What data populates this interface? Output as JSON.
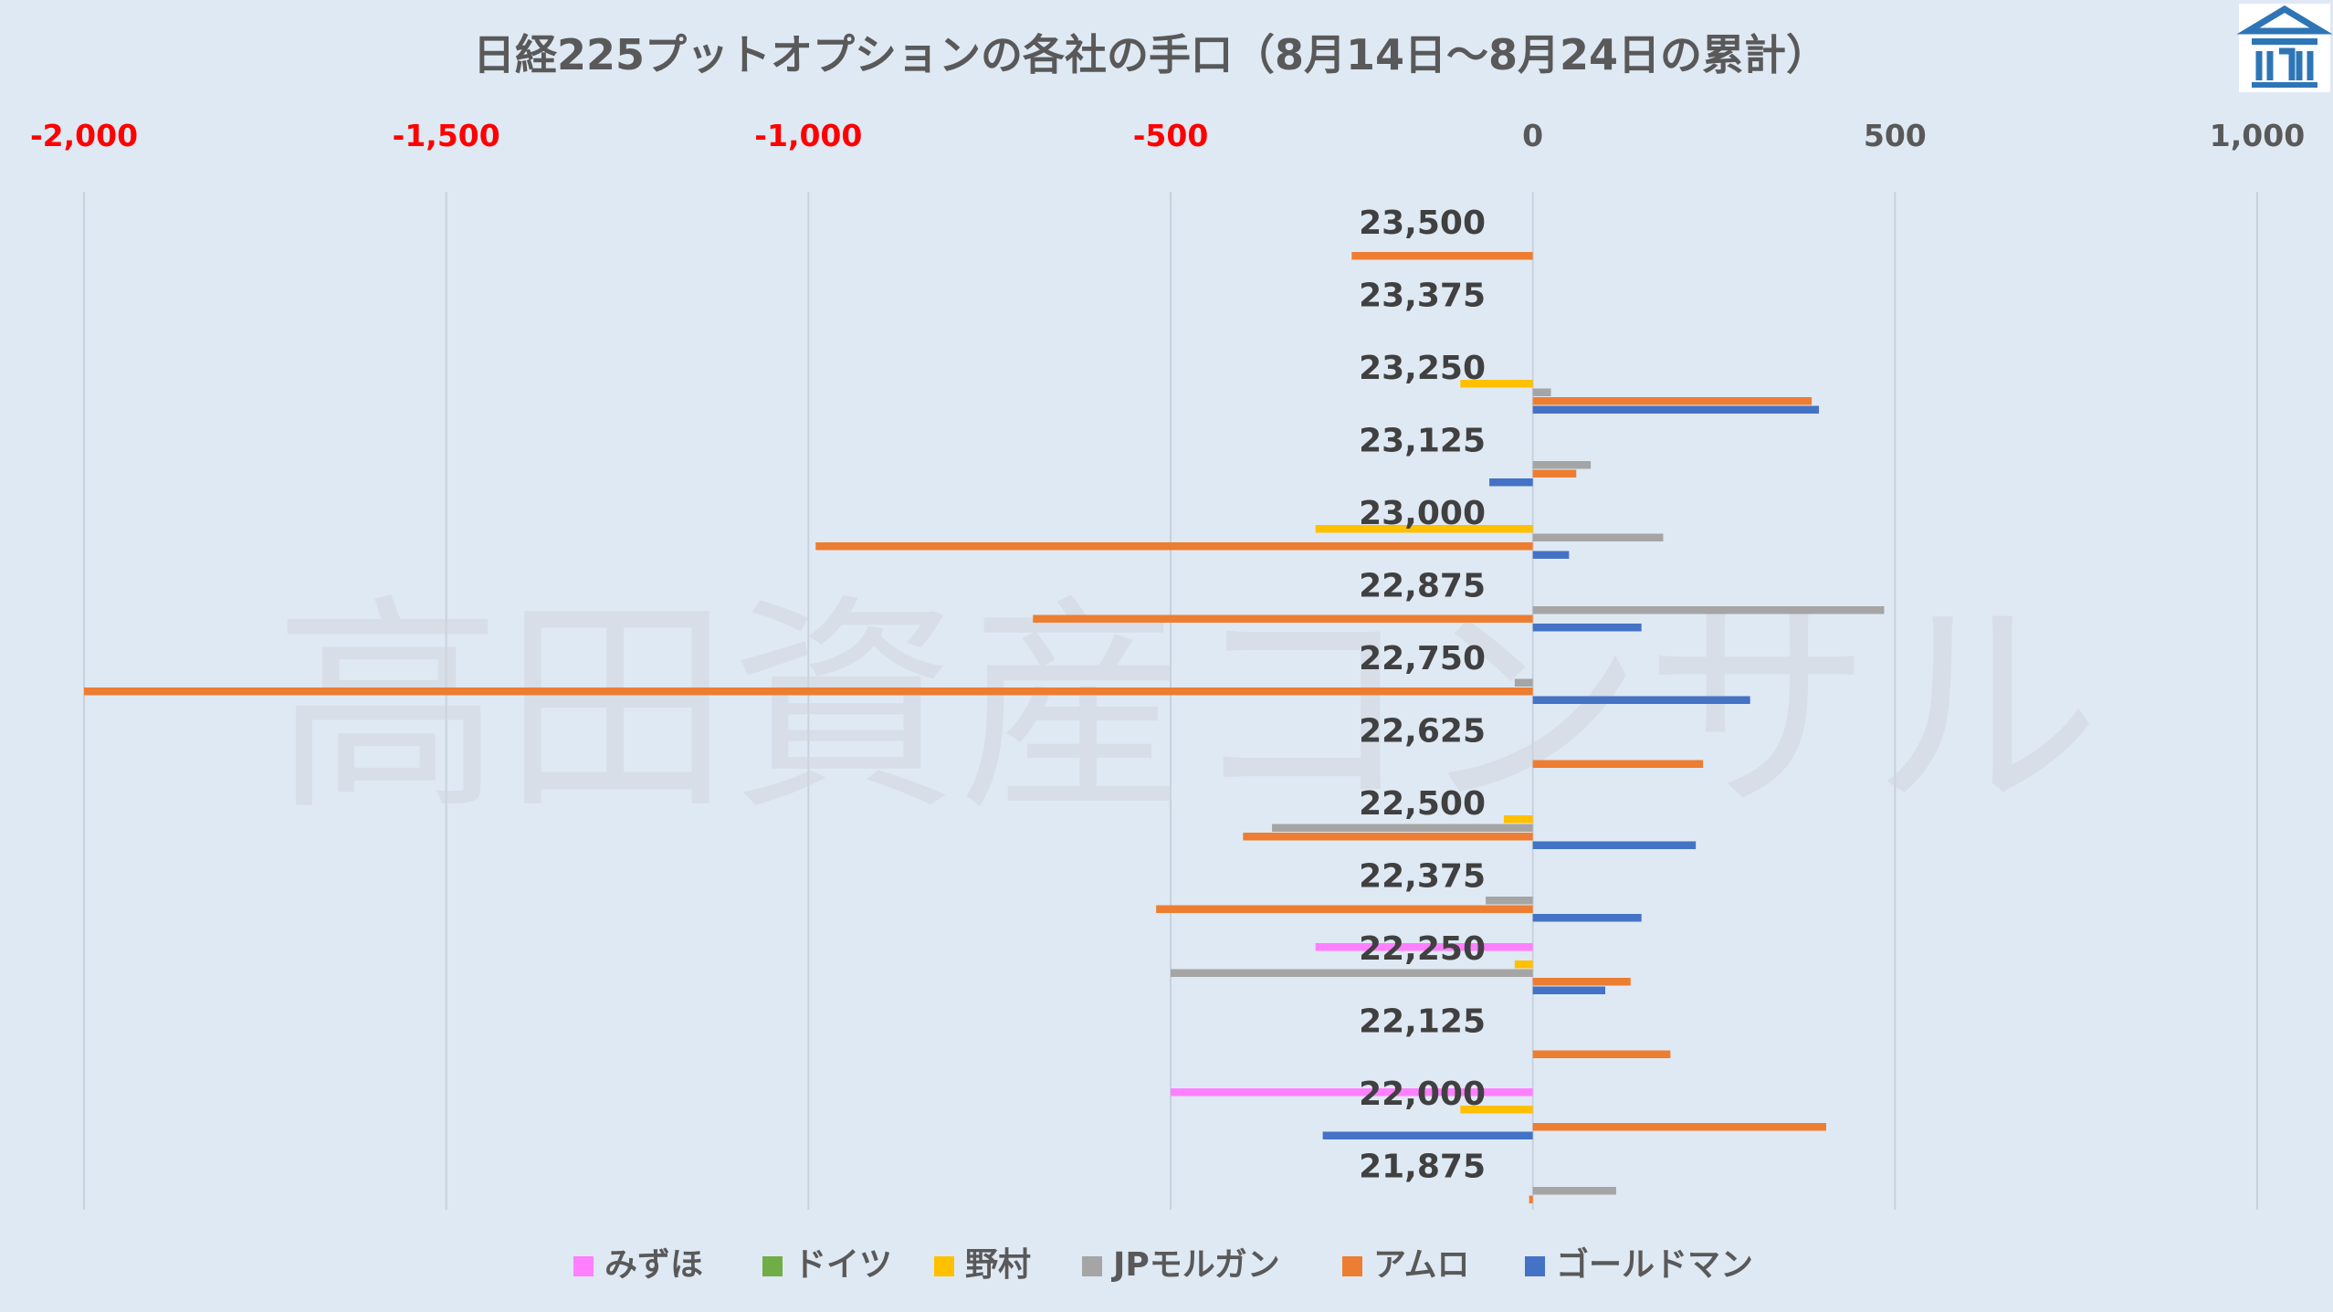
{
  "chart_data": {
    "type": "bar",
    "orientation": "horizontal",
    "title": "日経225プットオプションの各社の手口（8月14日〜8月24日の累計）",
    "watermark": "高田資産コンサル",
    "xlim": [
      -2000,
      1000
    ],
    "x_ticks": [
      -2000,
      -1500,
      -1000,
      -500,
      0,
      500,
      1000
    ],
    "x_tick_labels": [
      "-2,000",
      "-1,500",
      "-1,000",
      "-500",
      "0",
      "500",
      "1,000"
    ],
    "x_tick_colors": [
      "#ff0000",
      "#ff0000",
      "#ff0000",
      "#ff0000",
      "#595959",
      "#595959",
      "#595959"
    ],
    "x_axis_position": "top",
    "grid": true,
    "legend_position": "bottom",
    "categories": [
      "23,500",
      "23,375",
      "23,250",
      "23,125",
      "23,000",
      "22,875",
      "22,750",
      "22,625",
      "22,500",
      "22,375",
      "22,250",
      "22,125",
      "22,000",
      "21,875"
    ],
    "series": [
      {
        "name": "みずほ",
        "color": "#ff80ff",
        "values": [
          0,
          0,
          0,
          0,
          0,
          0,
          0,
          0,
          0,
          0,
          -300,
          0,
          -500,
          0
        ]
      },
      {
        "name": "ドイツ",
        "color": "#70ad47",
        "values": [
          0,
          0,
          0,
          0,
          0,
          0,
          0,
          0,
          0,
          0,
          0,
          0,
          0,
          0
        ]
      },
      {
        "name": "野村",
        "color": "#ffc000",
        "values": [
          0,
          0,
          -100,
          0,
          -300,
          0,
          0,
          0,
          -40,
          0,
          -25,
          0,
          -100,
          0
        ]
      },
      {
        "name": "JPモルガン",
        "color": "#a5a5a5",
        "values": [
          0,
          0,
          25,
          80,
          180,
          485,
          -25,
          0,
          -360,
          -65,
          -500,
          0,
          0,
          115
        ]
      },
      {
        "name": "アムロ",
        "color": "#ed7d31",
        "values": [
          -250,
          0,
          385,
          60,
          -990,
          -690,
          -2000,
          235,
          -400,
          -520,
          135,
          190,
          405,
          -5
        ]
      },
      {
        "name": "ゴールドマン",
        "color": "#4472c4",
        "values": [
          0,
          0,
          395,
          -60,
          50,
          150,
          300,
          0,
          225,
          150,
          100,
          0,
          -290,
          0
        ]
      }
    ]
  },
  "logo": {
    "name": "takata-logo-icon",
    "color": "#2e75b6"
  }
}
